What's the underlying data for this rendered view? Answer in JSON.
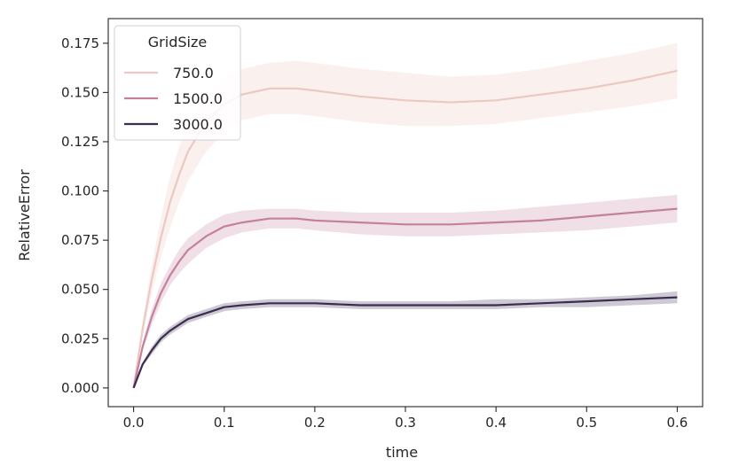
{
  "chart_data": {
    "type": "line",
    "title": "",
    "xlabel": "time",
    "ylabel": "RelativeError",
    "xlim": [
      -0.028,
      0.628
    ],
    "ylim": [
      -0.0095,
      0.1875
    ],
    "xticks": [
      0.0,
      0.1,
      0.2,
      0.3,
      0.4,
      0.5,
      0.6
    ],
    "xtick_labels": [
      "0.0",
      "0.1",
      "0.2",
      "0.3",
      "0.4",
      "0.5",
      "0.6"
    ],
    "yticks": [
      0.0,
      0.025,
      0.05,
      0.075,
      0.1,
      0.125,
      0.15,
      0.175
    ],
    "ytick_labels": [
      "0.000",
      "0.025",
      "0.050",
      "0.075",
      "0.100",
      "0.125",
      "0.150",
      "0.175"
    ],
    "grid": false,
    "legend": {
      "title": "GridSize",
      "position": "top-left"
    },
    "series": [
      {
        "name": "750.0",
        "color": "#ecc8c3",
        "x": [
          0.0,
          0.01,
          0.02,
          0.03,
          0.04,
          0.05,
          0.06,
          0.08,
          0.1,
          0.12,
          0.15,
          0.18,
          0.2,
          0.25,
          0.3,
          0.35,
          0.4,
          0.45,
          0.5,
          0.55,
          0.6
        ],
        "y": [
          0.0,
          0.03,
          0.055,
          0.076,
          0.094,
          0.108,
          0.12,
          0.135,
          0.144,
          0.149,
          0.152,
          0.152,
          0.151,
          0.148,
          0.146,
          0.145,
          0.146,
          0.149,
          0.152,
          0.156,
          0.161
        ],
        "lower": [
          0.0,
          0.026,
          0.048,
          0.066,
          0.081,
          0.094,
          0.105,
          0.12,
          0.13,
          0.136,
          0.139,
          0.139,
          0.138,
          0.135,
          0.133,
          0.133,
          0.134,
          0.137,
          0.14,
          0.143,
          0.147
        ],
        "upper": [
          0.0,
          0.034,
          0.062,
          0.086,
          0.107,
          0.122,
          0.135,
          0.15,
          0.158,
          0.162,
          0.165,
          0.166,
          0.165,
          0.162,
          0.16,
          0.158,
          0.159,
          0.162,
          0.166,
          0.17,
          0.175
        ]
      },
      {
        "name": "1500.0",
        "color": "#c4809d",
        "x": [
          0.0,
          0.01,
          0.02,
          0.03,
          0.04,
          0.05,
          0.06,
          0.08,
          0.1,
          0.12,
          0.15,
          0.18,
          0.2,
          0.25,
          0.3,
          0.35,
          0.4,
          0.45,
          0.5,
          0.55,
          0.6
        ],
        "y": [
          0.0,
          0.021,
          0.036,
          0.048,
          0.057,
          0.064,
          0.07,
          0.077,
          0.082,
          0.084,
          0.086,
          0.086,
          0.085,
          0.084,
          0.083,
          0.083,
          0.084,
          0.085,
          0.087,
          0.089,
          0.091
        ],
        "lower": [
          0.0,
          0.019,
          0.032,
          0.043,
          0.052,
          0.058,
          0.063,
          0.071,
          0.076,
          0.079,
          0.081,
          0.081,
          0.08,
          0.078,
          0.077,
          0.077,
          0.078,
          0.079,
          0.08,
          0.082,
          0.084
        ],
        "upper": [
          0.0,
          0.023,
          0.04,
          0.053,
          0.062,
          0.07,
          0.076,
          0.083,
          0.088,
          0.09,
          0.091,
          0.091,
          0.09,
          0.089,
          0.089,
          0.089,
          0.09,
          0.092,
          0.094,
          0.096,
          0.098
        ]
      },
      {
        "name": "3000.0",
        "color": "#3c2c50",
        "x": [
          0.0,
          0.01,
          0.02,
          0.03,
          0.04,
          0.05,
          0.06,
          0.08,
          0.1,
          0.12,
          0.15,
          0.18,
          0.2,
          0.25,
          0.3,
          0.35,
          0.4,
          0.45,
          0.5,
          0.55,
          0.6
        ],
        "y": [
          0.0,
          0.012,
          0.019,
          0.025,
          0.029,
          0.032,
          0.035,
          0.038,
          0.041,
          0.042,
          0.043,
          0.043,
          0.043,
          0.042,
          0.042,
          0.042,
          0.042,
          0.043,
          0.044,
          0.045,
          0.046
        ],
        "lower": [
          0.0,
          0.011,
          0.017,
          0.023,
          0.027,
          0.03,
          0.033,
          0.036,
          0.039,
          0.04,
          0.041,
          0.041,
          0.041,
          0.04,
          0.04,
          0.04,
          0.04,
          0.041,
          0.041,
          0.042,
          0.043
        ],
        "upper": [
          0.0,
          0.013,
          0.021,
          0.027,
          0.031,
          0.034,
          0.037,
          0.04,
          0.043,
          0.044,
          0.045,
          0.045,
          0.045,
          0.044,
          0.044,
          0.044,
          0.045,
          0.045,
          0.046,
          0.047,
          0.049
        ]
      }
    ]
  }
}
